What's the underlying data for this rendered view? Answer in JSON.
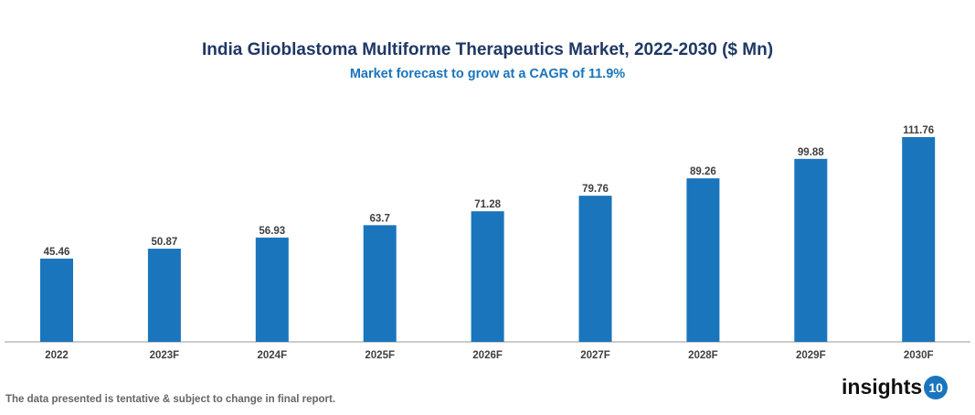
{
  "chart_data": {
    "type": "bar",
    "title": "India Glioblastoma Multiforme Therapeutics Market, 2022-2030 ($ Mn)",
    "subtitle": "Market forecast to grow at a CAGR of 11.9%",
    "categories": [
      "2022",
      "2023F",
      "2024F",
      "2025F",
      "2026F",
      "2027F",
      "2028F",
      "2029F",
      "2030F"
    ],
    "values": [
      45.46,
      50.87,
      56.93,
      63.7,
      71.28,
      79.76,
      89.26,
      99.88,
      111.76
    ],
    "ylim": [
      0,
      115
    ],
    "grid": false,
    "bar_color": "#1a75bc"
  },
  "footer": "The data presented is tentative & subject to change in final report.",
  "logo": {
    "text": "insights",
    "number": "10"
  }
}
